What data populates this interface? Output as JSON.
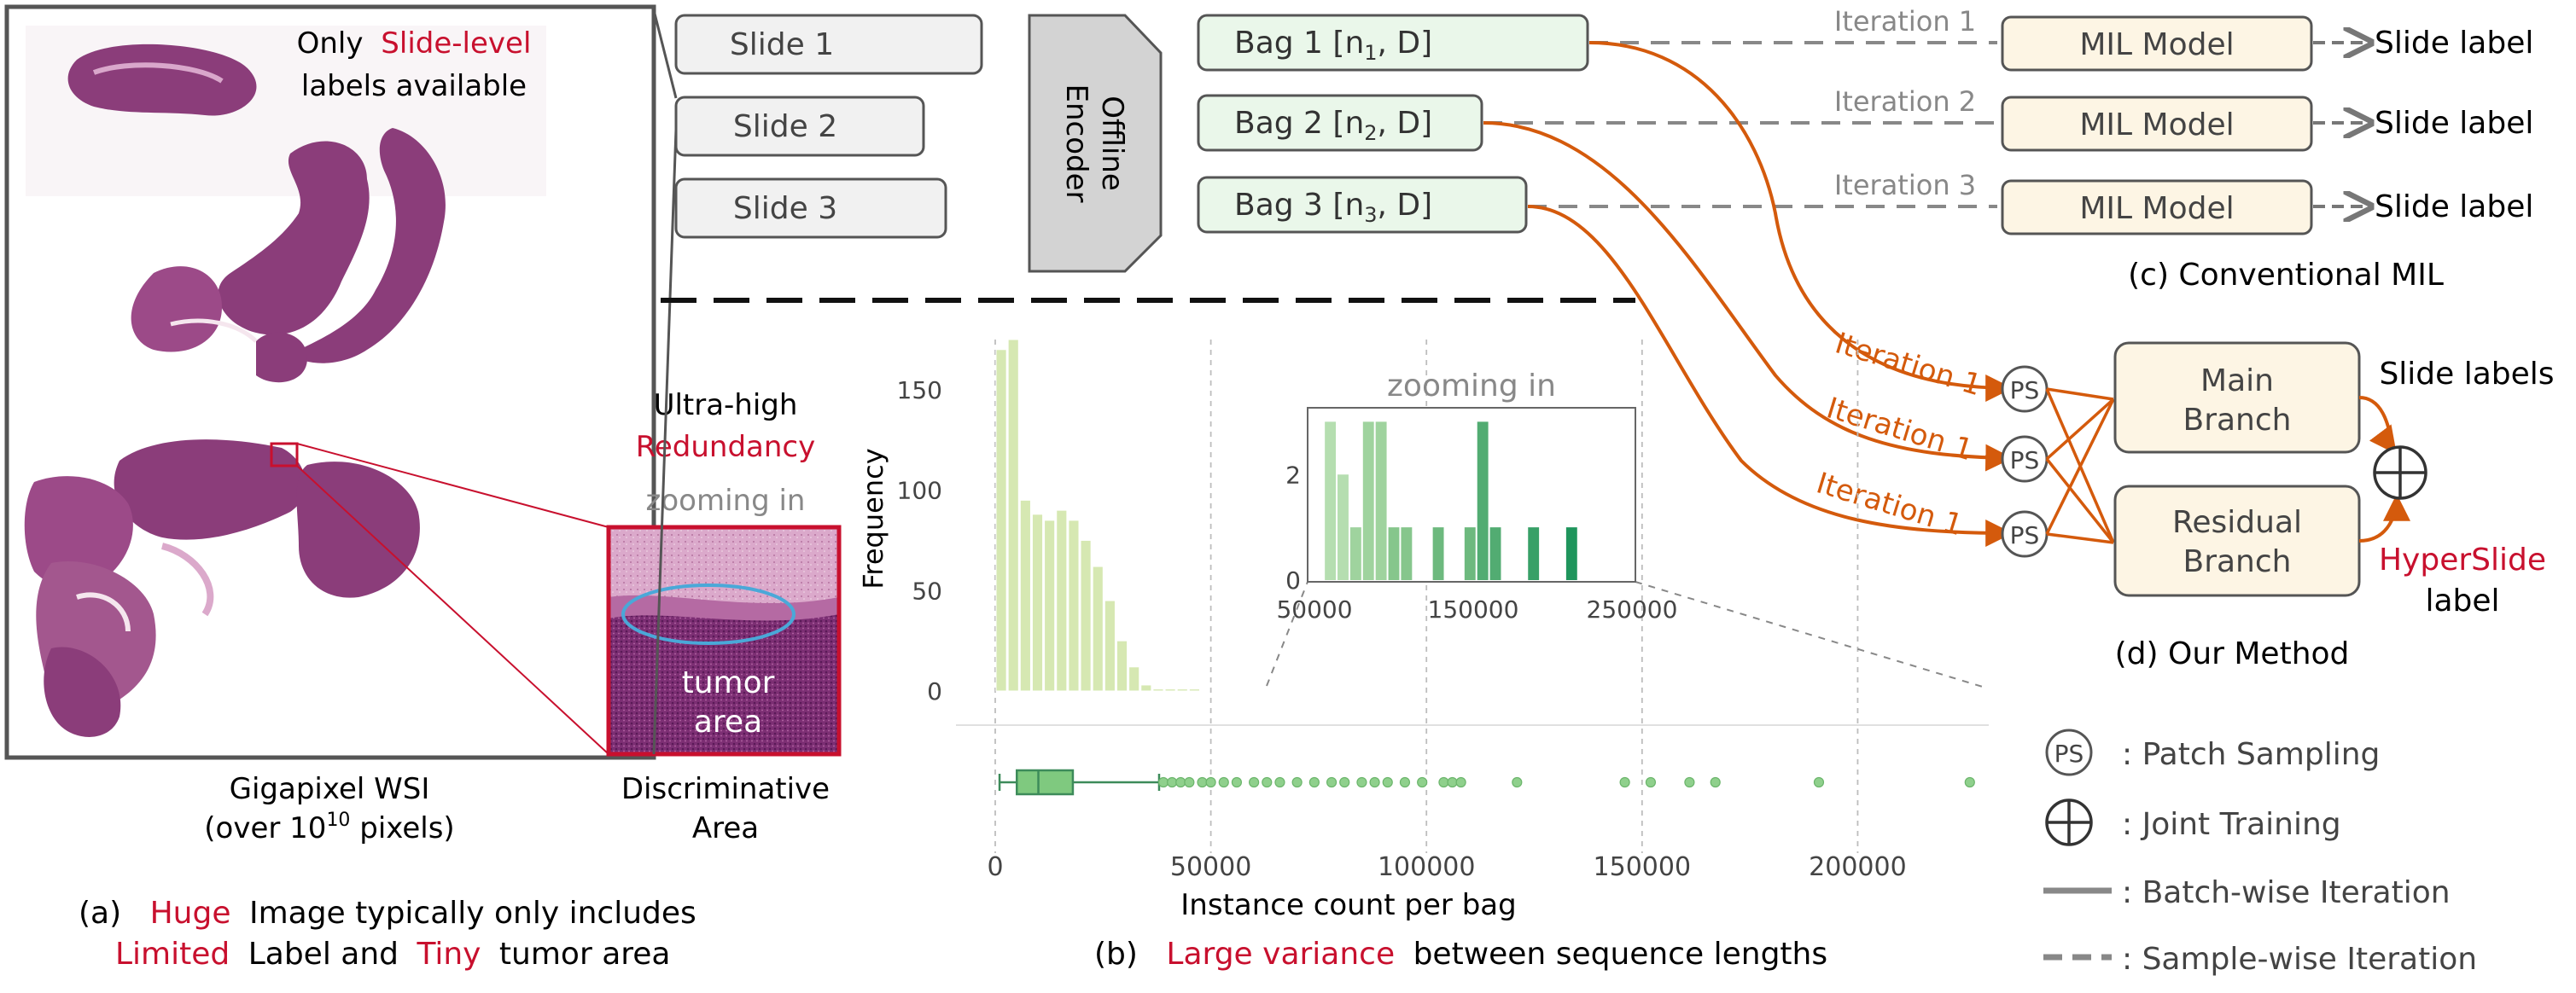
{
  "panel_a": {
    "wsi_top_label_1": "Only",
    "wsi_top_label_red": "Slide-level",
    "wsi_top_label_2": "labels available",
    "redundancy_line1": "Ultra-high",
    "redundancy_line2": "Redundancy",
    "zoom_label": "zooming in",
    "tumor_line1": "tumor",
    "tumor_line2": "area",
    "wsi_caption_1": "Gigapixel WSI",
    "wsi_caption_2_pre": "(over 10",
    "wsi_caption_2_sup": "10",
    "wsi_caption_2_post": " pixels)",
    "disc_line1": "Discriminative",
    "disc_line2": "Area",
    "caption_1_a": "(a)",
    "caption_1_huge": "Huge",
    "caption_1_b": "Image typically only includes",
    "caption_2_limited": "Limited",
    "caption_2_a": "Label and",
    "caption_2_tiny": "Tiny",
    "caption_2_b": "tumor area",
    "colors": {
      "red": "#c8102e",
      "tissue": "#8b3d7a"
    }
  },
  "slides": [
    "Slide 1",
    "Slide 2",
    "Slide 3"
  ],
  "encoder_line1": "Offline",
  "encoder_line2": "Encoder",
  "bags": [
    {
      "pre": "Bag 1 [n",
      "sub": "1",
      "post": ", D]"
    },
    {
      "pre": "Bag 2 [n",
      "sub": "2",
      "post": ", D]"
    },
    {
      "pre": "Bag 3 [n",
      "sub": "3",
      "post": ", D]"
    }
  ],
  "panel_c": {
    "iterations": [
      "Iteration 1",
      "Iteration 2",
      "Iteration 3"
    ],
    "model_label": "MIL Model",
    "output_label": "Slide label",
    "caption": "(c) Conventional MIL"
  },
  "panel_d": {
    "iteration_label": "Iteration 1",
    "ps_label": "PS",
    "main_line1": "Main",
    "main_line2": "Branch",
    "residual_line1": "Residual",
    "residual_line2": "Branch",
    "slide_labels": "Slide labels",
    "hyperslide": "HyperSlide",
    "hyperslide_label": "label",
    "caption": "(d) Our Method",
    "colors": {
      "orange": "#d45a0c",
      "box": "#fdf5e4"
    }
  },
  "legend": [
    {
      "icon": "ps",
      "text": ": Patch Sampling"
    },
    {
      "icon": "oplus",
      "text": ": Joint Training"
    },
    {
      "icon": "solid",
      "text": ": Batch-wise Iteration"
    },
    {
      "icon": "dashed",
      "text": ": Sample-wise Iteration"
    }
  ],
  "panel_b_caption": {
    "a": "(b)",
    "red": "Large variance",
    "b": "between sequence lengths"
  },
  "chart_data": [
    {
      "type": "bar",
      "title": "",
      "xlabel": "",
      "ylabel": "Frequency",
      "xlim": [
        0,
        230000
      ],
      "ylim": [
        0,
        175
      ],
      "yticks": [
        0,
        50,
        100,
        150
      ],
      "bin_width": 2800,
      "x": [
        1400,
        4200,
        7000,
        9800,
        12600,
        15400,
        18200,
        21000,
        23800,
        26600,
        29400,
        32200,
        35000,
        37800,
        40600,
        43400,
        46200
      ],
      "values": [
        170,
        175,
        95,
        88,
        85,
        90,
        85,
        75,
        62,
        45,
        25,
        12,
        3,
        1,
        1,
        1,
        1
      ],
      "color": "#d6e8b2"
    },
    {
      "type": "bar",
      "title": "zooming in",
      "xlim": [
        50000,
        250000
      ],
      "xticks": [
        50000,
        150000,
        250000
      ],
      "ylim": [
        0,
        3.2
      ],
      "yticks": [
        0,
        2
      ],
      "bin_width": 8000,
      "x": [
        60000,
        68000,
        76000,
        84000,
        92000,
        100000,
        108000,
        128000,
        148000,
        156000,
        164000,
        188000,
        212000
      ],
      "values": [
        3,
        2,
        1,
        3,
        3,
        1,
        1,
        1,
        1,
        3,
        1,
        1,
        1
      ]
    },
    {
      "type": "box",
      "xlabel": "Instance count per bag",
      "xlim": [
        0,
        230000
      ],
      "xticks": [
        0,
        50000,
        100000,
        150000,
        200000
      ],
      "whisker_low": 1000,
      "q1": 5000,
      "median": 10000,
      "q3": 18000,
      "whisker_high": 38000,
      "outliers": [
        39000,
        41000,
        43000,
        45000,
        48000,
        50000,
        53000,
        56000,
        60000,
        63000,
        66000,
        70000,
        74000,
        78000,
        81000,
        85000,
        88000,
        91000,
        95000,
        99000,
        104000,
        106000,
        108000,
        121000,
        146000,
        152000,
        161000,
        167000,
        191000,
        226000
      ],
      "color": "#7fc97f"
    }
  ]
}
